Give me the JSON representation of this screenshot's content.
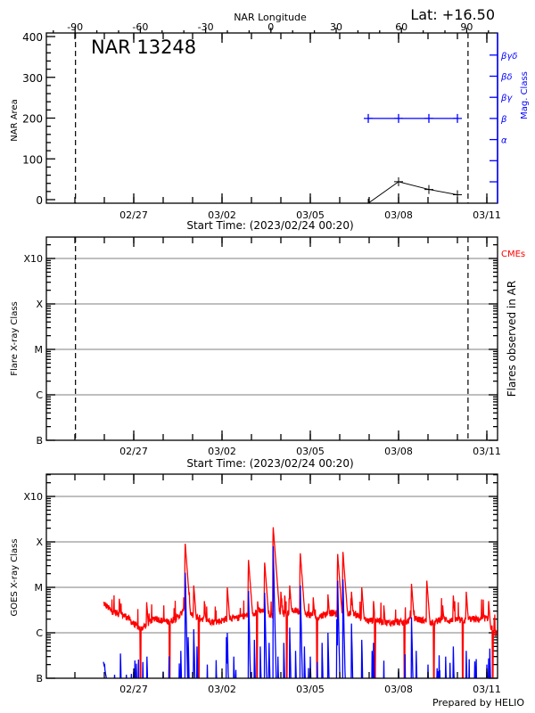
{
  "header": {
    "lat_label": "Lat: +16.50",
    "top_axis_title": "NAR Longitude",
    "region_title": "NAR 13248",
    "prepared_by": "Prepared by HELIO"
  },
  "time_axis": {
    "start_label": "Start Time: (2023/02/24 00:20)",
    "start_day_offset": 0.014,
    "end_day_offset": 15.36,
    "major_ticks": [
      {
        "day": 3,
        "label": "02/27"
      },
      {
        "day": 6,
        "label": "03/02"
      },
      {
        "day": 9,
        "label": "03/05"
      },
      {
        "day": 12,
        "label": "03/08"
      },
      {
        "day": 15,
        "label": "03/11"
      }
    ],
    "limb_crossings_days": [
      1.02,
      14.36
    ]
  },
  "chart_data": [
    {
      "type": "line",
      "title": "NAR 13248",
      "ylabel": "NAR Area",
      "xlabel": "Start Time: (2023/02/24 00:20)",
      "ylim": [
        -10,
        400
      ],
      "yticks": [
        0,
        100,
        200,
        300,
        400
      ],
      "top_axis": {
        "label": "NAR Longitude",
        "ticks": [
          -90,
          -60,
          -30,
          0,
          30,
          60,
          90
        ]
      },
      "area_series": {
        "days": [
          10.97,
          12.0,
          13.03,
          14.0
        ],
        "values": [
          -10,
          44,
          25,
          12
        ]
      },
      "right_axis": {
        "label": "Mag. Class",
        "classes": [
          "α",
          "β",
          "βγ",
          "βδ",
          "βγδ"
        ],
        "color": "#0000ff"
      },
      "mag_class_series": {
        "days": [
          10.97,
          12.0,
          13.03,
          14.0
        ],
        "values": [
          "β",
          "β",
          "β",
          "β"
        ]
      }
    },
    {
      "type": "scatter",
      "ylabel": "Flare X-ray Class",
      "right_label": "Flares observed in AR",
      "cme_label": "CMEs",
      "cme_color": "#ff0000",
      "class_ticks": [
        "B",
        "C",
        "M",
        "X",
        "X10"
      ],
      "points": []
    },
    {
      "type": "line",
      "ylabel": "GOES X-ray Class",
      "class_ticks": [
        "B",
        "C",
        "M",
        "X",
        "X10"
      ],
      "flux_unit": "1e-6 W/m^2",
      "long_channel": {
        "color": "#ff0000",
        "background_start_day": 1.97,
        "background_step_days": 0.25,
        "background": [
          4.4,
          3.0,
          2.6,
          2.3,
          1.6,
          1.2,
          1.5,
          2.1,
          1.8,
          1.7,
          2.1,
          3.0,
          2.4,
          2.1,
          1.9,
          1.7,
          1.8,
          2.1,
          2.0,
          2.3,
          2.4,
          3.0,
          2.8,
          2.4,
          2.8,
          2.6,
          3.1,
          2.8,
          2.4,
          2.1,
          2.5,
          2.7,
          2.5,
          2.4,
          2.7,
          2.1,
          1.8,
          1.9,
          1.7,
          1.6,
          1.7,
          1.6,
          2.1,
          1.9,
          1.8,
          1.6,
          2.1,
          1.8,
          1.9,
          1.8,
          2.0,
          1.9,
          2.1,
          1.0,
          0.9
        ],
        "flares": [
          {
            "day": 2.51,
            "peak": 5.6
          },
          {
            "day": 3.44,
            "peak": 4.7
          },
          {
            "day": 4.7,
            "peak": 6.0
          },
          {
            "day": 4.75,
            "peak": 91
          },
          {
            "day": 5.04,
            "peak": 11
          },
          {
            "day": 5.4,
            "peak": 5
          },
          {
            "day": 6.18,
            "peak": 10
          },
          {
            "day": 6.9,
            "peak": 40
          },
          {
            "day": 7.2,
            "peak": 6
          },
          {
            "day": 7.45,
            "peak": 35
          },
          {
            "day": 7.74,
            "peak": 210
          },
          {
            "day": 8.0,
            "peak": 8
          },
          {
            "day": 8.3,
            "peak": 11
          },
          {
            "day": 8.66,
            "peak": 56
          },
          {
            "day": 9.1,
            "peak": 6
          },
          {
            "day": 9.6,
            "peak": 7
          },
          {
            "day": 9.93,
            "peak": 54
          },
          {
            "day": 10.11,
            "peak": 60
          },
          {
            "day": 10.4,
            "peak": 8
          },
          {
            "day": 10.75,
            "peak": 10
          },
          {
            "day": 11.15,
            "peak": 5
          },
          {
            "day": 11.5,
            "peak": 4
          },
          {
            "day": 12.44,
            "peak": 12
          },
          {
            "day": 12.96,
            "peak": 14
          },
          {
            "day": 13.5,
            "peak": 4
          },
          {
            "day": 13.86,
            "peak": 6.6
          },
          {
            "day": 14.3,
            "peak": 8
          },
          {
            "day": 15.06,
            "peak": 5
          }
        ],
        "dropout_days": [
          3.23,
          4.22,
          5.21,
          7.19,
          8.2,
          9.23,
          11.2,
          12.2,
          13.2,
          14.18,
          15.2
        ]
      },
      "short_channel": {
        "color": "#0000ff",
        "start": {
          "day": 1.97,
          "value": 0.23
        },
        "spikes": [
          {
            "day": 2.35,
            "peak": 0.12
          },
          {
            "day": 2.55,
            "peak": 0.35
          },
          {
            "day": 2.75,
            "peak": 0.12
          },
          {
            "day": 3.0,
            "peak": 0.14
          },
          {
            "day": 3.45,
            "peak": 0.3
          },
          {
            "day": 4.0,
            "peak": 0.14
          },
          {
            "day": 4.6,
            "peak": 0.4
          },
          {
            "day": 4.75,
            "peak": 21
          },
          {
            "day": 4.85,
            "peak": 0.8
          },
          {
            "day": 5.04,
            "peak": 1.2
          },
          {
            "day": 5.15,
            "peak": 0.5
          },
          {
            "day": 5.5,
            "peak": 0.2
          },
          {
            "day": 5.8,
            "peak": 0.25
          },
          {
            "day": 6.15,
            "peak": 0.8
          },
          {
            "day": 6.18,
            "peak": 1.0
          },
          {
            "day": 6.4,
            "peak": 0.3
          },
          {
            "day": 6.9,
            "peak": 8.3
          },
          {
            "day": 7.1,
            "peak": 0.7
          },
          {
            "day": 7.3,
            "peak": 0.5
          },
          {
            "day": 7.45,
            "peak": 7.6
          },
          {
            "day": 7.6,
            "peak": 0.6
          },
          {
            "day": 7.74,
            "peak": 80
          },
          {
            "day": 7.9,
            "peak": 0.3
          },
          {
            "day": 8.1,
            "peak": 0.6
          },
          {
            "day": 8.3,
            "peak": 1.3
          },
          {
            "day": 8.5,
            "peak": 0.4
          },
          {
            "day": 8.66,
            "peak": 11
          },
          {
            "day": 8.8,
            "peak": 0.5
          },
          {
            "day": 9.0,
            "peak": 0.3
          },
          {
            "day": 9.4,
            "peak": 0.6
          },
          {
            "day": 9.6,
            "peak": 1.0
          },
          {
            "day": 9.9,
            "peak": 2.0
          },
          {
            "day": 9.93,
            "peak": 14
          },
          {
            "day": 10.11,
            "peak": 15
          },
          {
            "day": 10.4,
            "peak": 1.6
          },
          {
            "day": 10.75,
            "peak": 0.7
          },
          {
            "day": 11.1,
            "peak": 0.4
          },
          {
            "day": 11.15,
            "peak": 0.6
          },
          {
            "day": 11.5,
            "peak": 0.15
          },
          {
            "day": 12.0,
            "peak": 0.15
          },
          {
            "day": 12.44,
            "peak": 2.2
          },
          {
            "day": 12.6,
            "peak": 0.4
          },
          {
            "day": 13.0,
            "peak": 0.2
          },
          {
            "day": 13.4,
            "peak": 0.15
          },
          {
            "day": 13.6,
            "peak": 0.3
          },
          {
            "day": 13.86,
            "peak": 0.5
          },
          {
            "day": 14.3,
            "peak": 0.4
          },
          {
            "day": 14.6,
            "peak": 0.13
          },
          {
            "day": 15.0,
            "peak": 0.2
          },
          {
            "day": 15.1,
            "peak": 0.45
          }
        ]
      }
    }
  ]
}
